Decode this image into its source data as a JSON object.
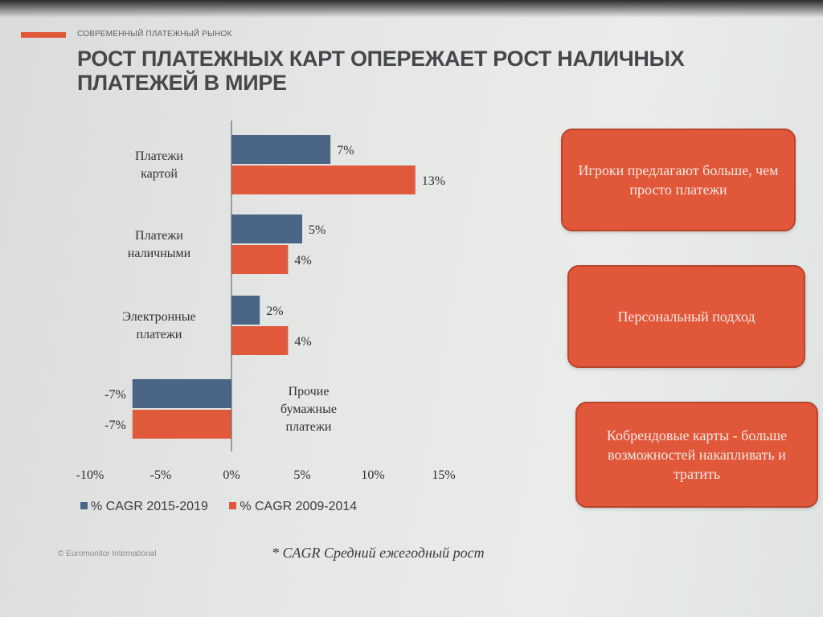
{
  "slide": {
    "kicker": "СОВРЕМЕННЫЙ ПЛАТЕЖНЫЙ РЫНОК",
    "title": "РОСТ ПЛАТЕЖНЫХ КАРТ ОПЕРЕЖАЕТ РОСТ НАЛИЧНЫХ ПЛАТЕЖЕЙ В МИРЕ",
    "source": "© Euromonitor International",
    "footnote": "* CAGR  Средний ежегодный рост",
    "accent_color": "#e1593b"
  },
  "callouts": [
    {
      "text": "Игроки предлагают больше, чем просто платежи"
    },
    {
      "text": "Персональный подход"
    },
    {
      "text": "Кобрендовые карты - больше возможностей накапливать и тратить"
    }
  ],
  "chart_data": {
    "type": "bar",
    "orientation": "horizontal",
    "categories": [
      {
        "lines": [
          "Платежи",
          "картой"
        ]
      },
      {
        "lines": [
          "Платежи",
          "наличными"
        ]
      },
      {
        "lines": [
          "Электронные",
          "платежи"
        ]
      },
      {
        "lines": [
          "Прочие",
          "бумажные",
          "платежи"
        ]
      }
    ],
    "series": [
      {
        "name": "% CAGR 2015-2019",
        "color": "#4a6585",
        "values": [
          7,
          5,
          2,
          -7
        ],
        "labels": [
          "7%",
          "5%",
          "2%",
          "-7%"
        ]
      },
      {
        "name": "% CAGR 2009-2014",
        "color": "#e1593b",
        "values": [
          13,
          4,
          4,
          -7
        ],
        "labels": [
          "13%",
          "4%",
          "4%",
          "-7%"
        ]
      }
    ],
    "xlim": [
      -10,
      15
    ],
    "xticks": [
      -10,
      -5,
      0,
      5,
      10,
      15
    ],
    "xtick_labels": [
      "-10%",
      "-5%",
      "0%",
      "5%",
      "10%",
      "15%"
    ],
    "legend_position": "bottom-left",
    "grid": false
  }
}
